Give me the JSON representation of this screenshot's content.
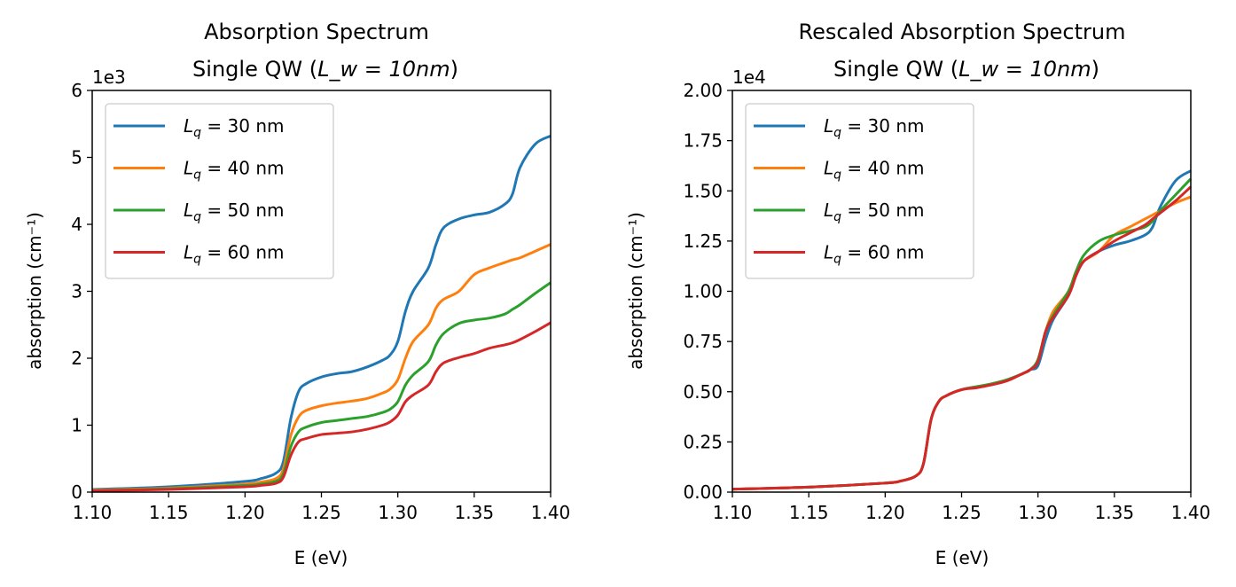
{
  "chart_data": [
    {
      "type": "line",
      "title": "Absorption Spectrum",
      "subtitle_prefix": "Single QW (",
      "subtitle_math": "L_w = 10nm",
      "subtitle_suffix": ")",
      "xlabel": "E (eV)",
      "ylabel": "absorption (cm⁻¹)",
      "xlim": [
        1.1,
        1.4
      ],
      "ylim": [
        0,
        6
      ],
      "y_scale_label": "1e3",
      "xticks": [
        "1.10",
        "1.15",
        "1.20",
        "1.25",
        "1.30",
        "1.35",
        "1.40"
      ],
      "yticks": [
        "0",
        "1",
        "2",
        "3",
        "4",
        "5",
        "6"
      ],
      "legend_position": "upper-left",
      "x": [
        1.1,
        1.15,
        1.2,
        1.21,
        1.22,
        1.225,
        1.23,
        1.235,
        1.24,
        1.25,
        1.26,
        1.27,
        1.28,
        1.29,
        1.295,
        1.3,
        1.305,
        1.31,
        1.32,
        1.325,
        1.33,
        1.34,
        1.35,
        1.36,
        1.37,
        1.375,
        1.38,
        1.39,
        1.4
      ],
      "series": [
        {
          "name": "L_q = 30 nm",
          "color": "#1f77b4",
          "values": [
            0.04,
            0.08,
            0.16,
            0.2,
            0.28,
            0.45,
            1.1,
            1.5,
            1.62,
            1.72,
            1.77,
            1.8,
            1.87,
            1.97,
            2.05,
            2.25,
            2.7,
            3.0,
            3.35,
            3.7,
            3.95,
            4.08,
            4.14,
            4.18,
            4.3,
            4.45,
            4.85,
            5.2,
            5.32
          ]
        },
        {
          "name": "L_q = 40 nm",
          "color": "#ff7f0e",
          "values": [
            0.03,
            0.06,
            0.12,
            0.15,
            0.2,
            0.34,
            0.85,
            1.12,
            1.22,
            1.29,
            1.33,
            1.36,
            1.4,
            1.48,
            1.54,
            1.68,
            2.0,
            2.25,
            2.5,
            2.75,
            2.88,
            3.0,
            3.25,
            3.35,
            3.43,
            3.47,
            3.5,
            3.6,
            3.7
          ]
        },
        {
          "name": "L_q = 50 nm",
          "color": "#2ca02c",
          "values": [
            0.02,
            0.05,
            0.1,
            0.12,
            0.16,
            0.27,
            0.68,
            0.9,
            0.97,
            1.04,
            1.07,
            1.1,
            1.13,
            1.19,
            1.24,
            1.35,
            1.6,
            1.75,
            1.95,
            2.2,
            2.37,
            2.52,
            2.57,
            2.6,
            2.66,
            2.73,
            2.8,
            2.97,
            3.13
          ]
        },
        {
          "name": "L_q = 60 nm",
          "color": "#d62728",
          "values": [
            0.02,
            0.04,
            0.08,
            0.1,
            0.13,
            0.22,
            0.55,
            0.75,
            0.8,
            0.86,
            0.88,
            0.9,
            0.94,
            1.0,
            1.05,
            1.15,
            1.35,
            1.45,
            1.6,
            1.8,
            1.93,
            2.01,
            2.07,
            2.15,
            2.2,
            2.23,
            2.28,
            2.4,
            2.53
          ]
        }
      ]
    },
    {
      "type": "line",
      "title": "Rescaled Absorption Spectrum",
      "subtitle_prefix": "Single QW (",
      "subtitle_math": "L_w = 10nm",
      "subtitle_suffix": ")",
      "xlabel": "E (eV)",
      "ylabel": "absorption (cm⁻¹)",
      "xlim": [
        1.1,
        1.4
      ],
      "ylim": [
        0,
        2.0
      ],
      "y_scale_label": "1e4",
      "xticks": [
        "1.10",
        "1.15",
        "1.20",
        "1.25",
        "1.30",
        "1.35",
        "1.40"
      ],
      "yticks": [
        "0.00",
        "0.25",
        "0.50",
        "0.75",
        "1.00",
        "1.25",
        "1.50",
        "1.75",
        "2.00"
      ],
      "legend_position": "upper-left",
      "x": [
        1.1,
        1.15,
        1.2,
        1.21,
        1.22,
        1.225,
        1.23,
        1.235,
        1.24,
        1.25,
        1.26,
        1.27,
        1.28,
        1.29,
        1.295,
        1.3,
        1.305,
        1.31,
        1.32,
        1.325,
        1.33,
        1.34,
        1.35,
        1.36,
        1.37,
        1.375,
        1.38,
        1.39,
        1.4
      ],
      "series": [
        {
          "name": "L_q = 30 nm",
          "color": "#1f77b4",
          "values": [
            0.015,
            0.025,
            0.045,
            0.055,
            0.08,
            0.14,
            0.36,
            0.45,
            0.48,
            0.51,
            0.525,
            0.535,
            0.56,
            0.59,
            0.61,
            0.63,
            0.76,
            0.86,
            0.98,
            1.08,
            1.15,
            1.2,
            1.23,
            1.25,
            1.28,
            1.32,
            1.42,
            1.55,
            1.6
          ]
        },
        {
          "name": "L_q = 40 nm",
          "color": "#ff7f0e",
          "values": [
            0.015,
            0.025,
            0.045,
            0.055,
            0.08,
            0.14,
            0.36,
            0.45,
            0.48,
            0.51,
            0.525,
            0.54,
            0.56,
            0.59,
            0.61,
            0.66,
            0.8,
            0.9,
            1.0,
            1.1,
            1.15,
            1.2,
            1.28,
            1.32,
            1.36,
            1.38,
            1.4,
            1.44,
            1.47
          ]
        },
        {
          "name": "L_q = 50 nm",
          "color": "#2ca02c",
          "values": [
            0.015,
            0.025,
            0.045,
            0.055,
            0.08,
            0.14,
            0.36,
            0.45,
            0.48,
            0.51,
            0.525,
            0.54,
            0.56,
            0.59,
            0.61,
            0.66,
            0.8,
            0.88,
            1.0,
            1.1,
            1.18,
            1.25,
            1.28,
            1.3,
            1.32,
            1.35,
            1.4,
            1.48,
            1.56
          ]
        },
        {
          "name": "L_q = 60 nm",
          "color": "#d62728",
          "values": [
            0.015,
            0.025,
            0.045,
            0.055,
            0.08,
            0.14,
            0.36,
            0.45,
            0.48,
            0.51,
            0.52,
            0.535,
            0.555,
            0.59,
            0.61,
            0.65,
            0.8,
            0.87,
            0.98,
            1.08,
            1.15,
            1.2,
            1.25,
            1.29,
            1.33,
            1.36,
            1.39,
            1.45,
            1.52
          ]
        }
      ]
    }
  ]
}
